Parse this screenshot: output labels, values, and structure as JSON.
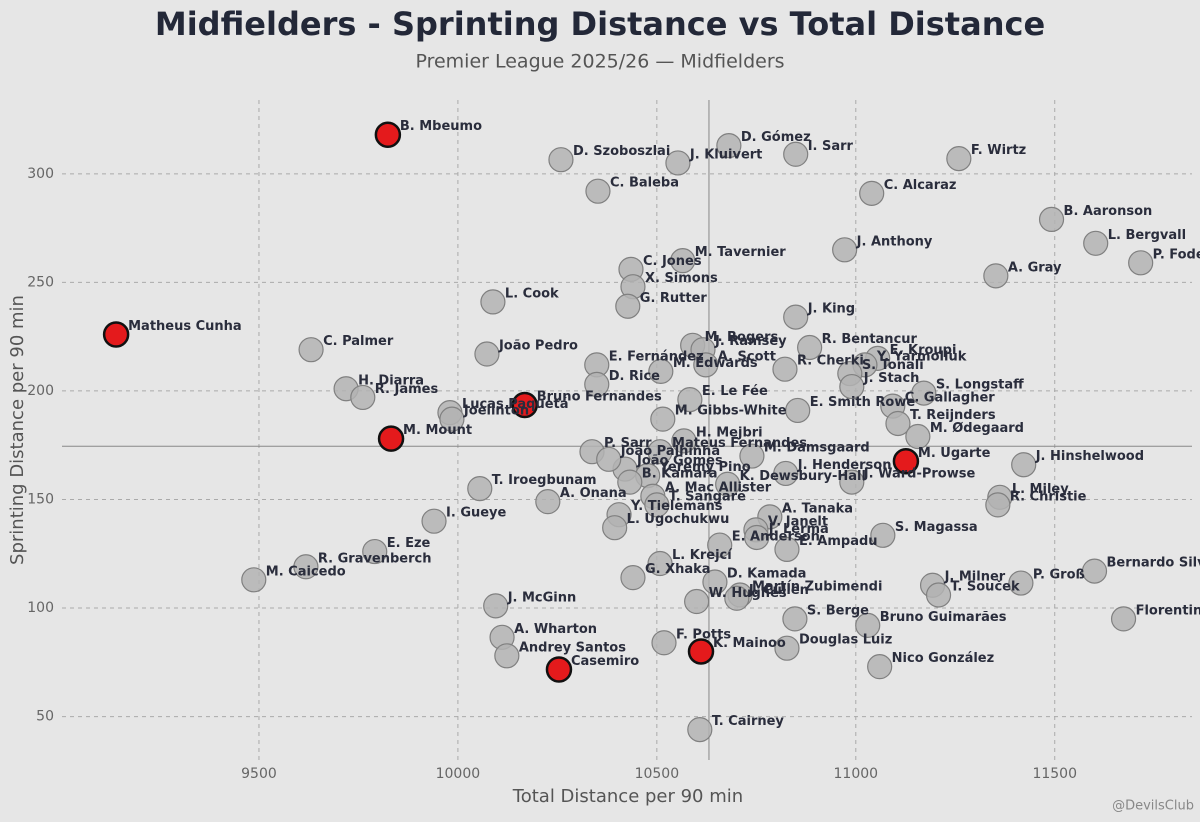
{
  "chart_data": {
    "type": "scatter",
    "title": "Midfielders - Sprinting Distance vs Total Distance",
    "subtitle": "Premier League 2025/26 — Midfielders",
    "x_label": "Total Distance per 90 min",
    "y_label": "Sprinting Distance per 90 min",
    "credit": "@DevilsClub",
    "xlim": [
      9005,
      11845
    ],
    "ylim": [
      30,
      334
    ],
    "xticks": [
      9500,
      10000,
      10500,
      11000,
      11500
    ],
    "yticks": [
      50,
      100,
      150,
      200,
      250,
      300
    ],
    "grid": true,
    "reference_lines": {
      "x": 10631,
      "y": 174.5
    },
    "series": [
      {
        "color": "#b3b3b3",
        "labels": [
          "D. Szoboszlai",
          "J. Kluivert",
          "D. Gómez",
          "I. Sarr",
          "F. Wirtz",
          "C. Baleba",
          "C. Alcaraz",
          "B. Aaronson",
          "L. Bergvall",
          "P. Foden",
          "M. Tavernier",
          "J. Anthony",
          "C. Jones",
          "X. Simons",
          "A. Gray",
          "L. Cook",
          "G. Rutter",
          "J. King",
          "C. Palmer",
          "João Pedro",
          "M. Rogers",
          "J. Ramsey",
          "R. Bentancur",
          "E. Kroupi",
          "E. Fernández",
          "A. Scott",
          "R. Cherki",
          "Y. Yarmoliuk",
          "S. Tonali",
          "M. Edwards",
          "D. Rice",
          "H. Diarra",
          "R. James",
          "E. Le Fée",
          "J. Stach",
          "S. Longstaff",
          "Lucas Paquetá",
          "Joelinton",
          "C. Gallagher",
          "E. Smith Rowe",
          "M. Gibbs-White",
          "T. Reijnders",
          "M. Ødegaard",
          "P. Sarr",
          "H. Mejbri",
          "Mateus Fernandes",
          "M. Damsgaard",
          "João Gomes",
          "João Palhinha",
          "J. Hinshelwood",
          "T. Iroegbunam",
          "Yeremy Pino",
          "B. Kamara",
          "J. Henderson",
          "K. Dewsbury-Hall",
          "J. Ward-Prowse",
          "A. Onana",
          "A. Mac Allister",
          "T. Sangaré",
          "L. Miley",
          "R. Christie",
          "A. Tanaka",
          "I. Gueye",
          "Y. Tielemans",
          "L. Ugochukwu",
          "V. Janelt",
          "J. Lerma",
          "S. Magassa",
          "E. Eze",
          "E. Anderson",
          "E. Ampadu",
          "R. Gravenberch",
          "L. Krejcí",
          "Bernardo Silva",
          "M. Caicedo",
          "G. Xhaka",
          "D. Kamada",
          "J. Milner",
          "Martín Zubimendi",
          "P. Groß",
          "T. Souček",
          "J. McGinn",
          "W. Hughes",
          "J. Cullen",
          "Florentino",
          "S. Berge",
          "Bruno Guimarães",
          "A. Wharton",
          "F. Potts",
          "Douglas Luiz",
          "Andrey Santos",
          "Nico González",
          "T. Cairney"
        ],
        "x": [
          10259,
          10553,
          10681,
          10849,
          11259,
          10352,
          11040,
          11492,
          11603,
          11716,
          10565,
          10972,
          10435,
          10440,
          11352,
          10088,
          10427,
          10849,
          9631,
          10073,
          10590,
          10616,
          10884,
          11055,
          10349,
          10623,
          10822,
          11023,
          10985,
          10510,
          10349,
          9719,
          9761,
          10583,
          10990,
          11171,
          9980,
          9985,
          11093,
          10854,
          10515,
          11106,
          11156,
          10337,
          10568,
          10508,
          10739,
          10420,
          10379,
          11422,
          10055,
          10477,
          10432,
          10824,
          10678,
          10990,
          10226,
          10490,
          10500,
          11362,
          11357,
          10784,
          9940,
          10405,
          10394,
          10749,
          10751,
          11068,
          9791,
          10658,
          10827,
          9618,
          10508,
          11600,
          9487,
          10440,
          10646,
          11193,
          10709,
          11415,
          11208,
          10095,
          10600,
          10701,
          11673,
          10847,
          11030,
          10111,
          10518,
          10827,
          10123,
          11060,
          10608
        ],
        "y": [
          306.5,
          305,
          313,
          309,
          307,
          292,
          291,
          279,
          268,
          259,
          260,
          265,
          256,
          248,
          253,
          241,
          239,
          234,
          219,
          217,
          221,
          219,
          220,
          215,
          212,
          212,
          210,
          212,
          208,
          209,
          203,
          201,
          197,
          196,
          202,
          199,
          190,
          187,
          193,
          191,
          187,
          185,
          179,
          172,
          177,
          172,
          170,
          164,
          168.5,
          166,
          155,
          161,
          158,
          162,
          157,
          158,
          149,
          151.5,
          147.5,
          151,
          147.5,
          142,
          140,
          143,
          137,
          136,
          132.5,
          133.5,
          126,
          129,
          127,
          119,
          120.5,
          117,
          113,
          114,
          112,
          110.5,
          106,
          111.5,
          106,
          101,
          103,
          104.5,
          95,
          95,
          92,
          86.5,
          84,
          81.5,
          78,
          73,
          44
        ]
      },
      {
        "color": "#e41a1c",
        "labels": [
          "B. Mbeumo",
          "Matheus Cunha",
          "Bruno Fernandes",
          "M. Mount",
          "M. Ugarte",
          "K. Mainoo",
          "Casemiro"
        ],
        "x": [
          9824,
          9141,
          10168,
          9832,
          11126,
          10611,
          10254
        ],
        "y": [
          318,
          226,
          193.5,
          178,
          167.6,
          80,
          71.7
        ]
      }
    ]
  }
}
